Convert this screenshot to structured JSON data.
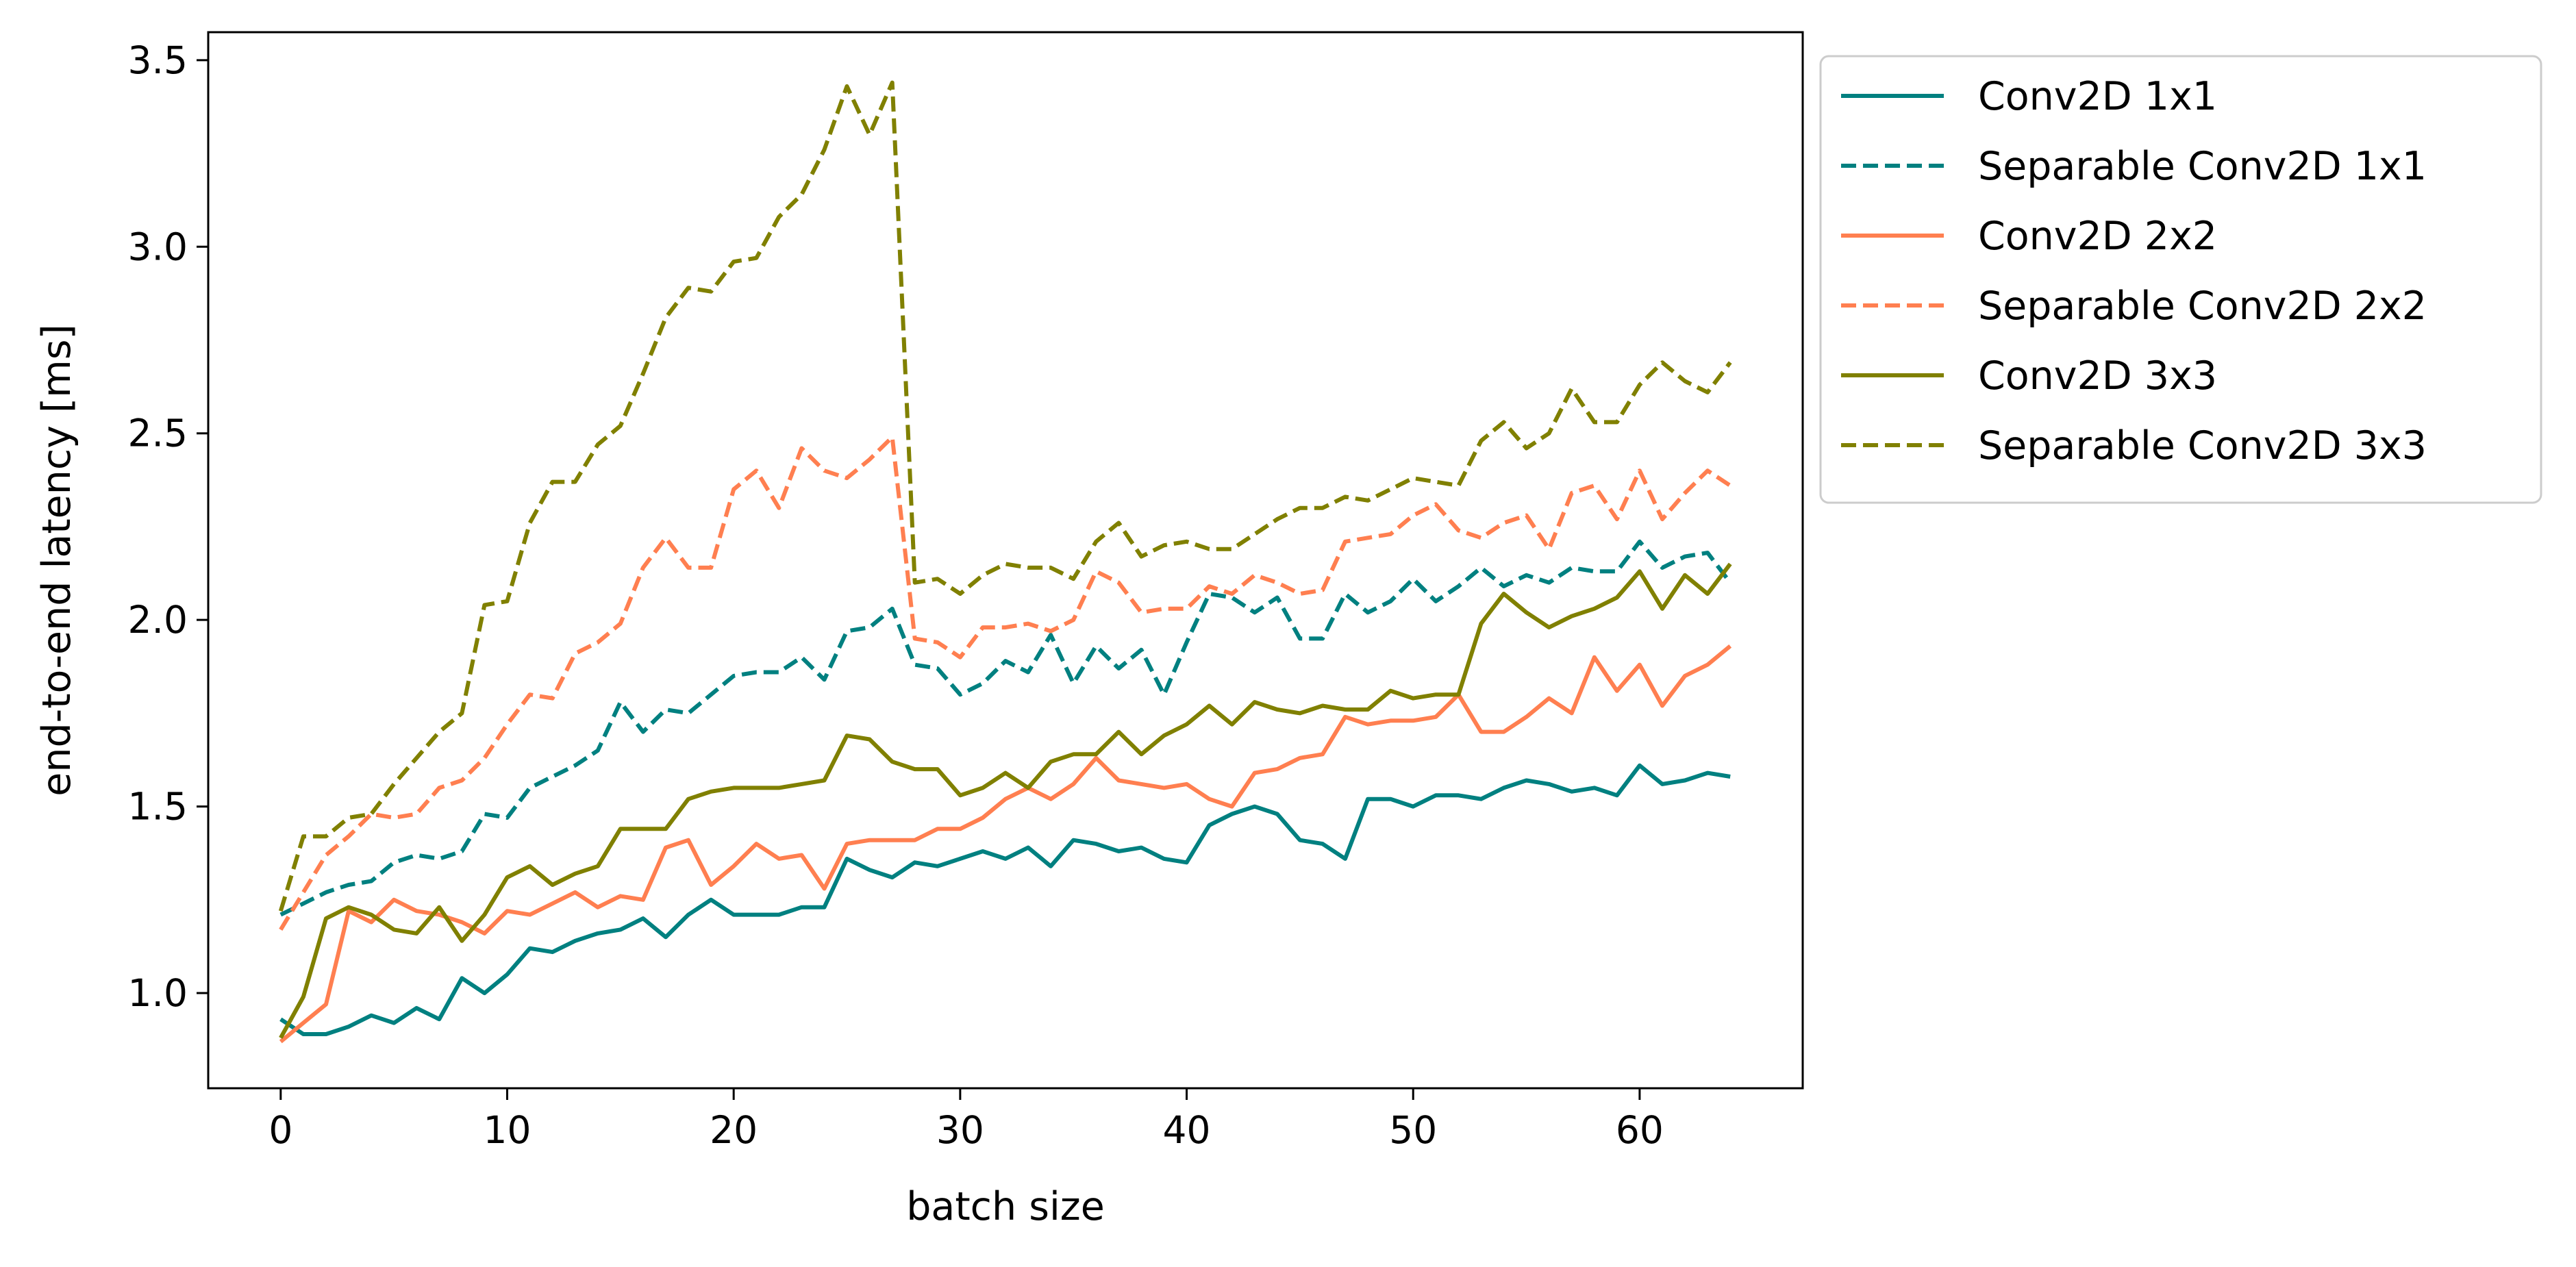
{
  "chart_data": {
    "type": "line",
    "xlabel": "batch size",
    "ylabel": "end-to-end latency [ms]",
    "xlim": [
      -3.2,
      67.2
    ],
    "ylim": [
      0.745,
      3.575
    ],
    "xticks": [
      0,
      10,
      20,
      30,
      40,
      50,
      60
    ],
    "yticks": [
      1.0,
      1.5,
      2.0,
      2.5,
      3.0,
      3.5
    ],
    "xtick_labels": [
      "0",
      "10",
      "20",
      "30",
      "40",
      "50",
      "60"
    ],
    "ytick_labels": [
      "1.0",
      "1.5",
      "2.0",
      "2.5",
      "3.0",
      "3.5"
    ],
    "grid": false,
    "legend_position": "outside-right-top",
    "x": [
      0,
      1,
      2,
      3,
      4,
      5,
      6,
      7,
      8,
      9,
      10,
      11,
      12,
      13,
      14,
      15,
      16,
      17,
      18,
      19,
      20,
      21,
      22,
      23,
      24,
      25,
      26,
      27,
      28,
      29,
      30,
      31,
      32,
      33,
      34,
      35,
      36,
      37,
      38,
      39,
      40,
      41,
      42,
      43,
      44,
      45,
      46,
      47,
      48,
      49,
      50,
      51,
      52,
      53,
      54,
      55,
      56,
      57,
      58,
      59,
      60,
      61,
      62,
      63,
      64
    ],
    "series": [
      {
        "name": "Conv2D 1x1",
        "color": "#008080",
        "style": "solid",
        "values": [
          0.93,
          0.89,
          0.89,
          0.91,
          0.94,
          0.92,
          0.96,
          0.93,
          1.04,
          1.0,
          1.05,
          1.12,
          1.11,
          1.14,
          1.16,
          1.17,
          1.2,
          1.15,
          1.21,
          1.25,
          1.21,
          1.21,
          1.21,
          1.23,
          1.23,
          1.36,
          1.33,
          1.31,
          1.35,
          1.34,
          1.36,
          1.38,
          1.36,
          1.39,
          1.34,
          1.41,
          1.4,
          1.38,
          1.39,
          1.36,
          1.35,
          1.45,
          1.48,
          1.5,
          1.48,
          1.41,
          1.4,
          1.36,
          1.52,
          1.52,
          1.5,
          1.53,
          1.53,
          1.52,
          1.55,
          1.57,
          1.56,
          1.54,
          1.55,
          1.53,
          1.61,
          1.56,
          1.57,
          1.59,
          1.58
        ]
      },
      {
        "name": "Separable Conv2D 1x1",
        "color": "#008080",
        "style": "dashed",
        "values": [
          1.21,
          1.24,
          1.27,
          1.29,
          1.3,
          1.35,
          1.37,
          1.36,
          1.38,
          1.48,
          1.47,
          1.55,
          1.58,
          1.61,
          1.65,
          1.78,
          1.7,
          1.76,
          1.75,
          1.8,
          1.85,
          1.86,
          1.86,
          1.9,
          1.84,
          1.97,
          1.98,
          2.03,
          1.88,
          1.87,
          1.8,
          1.83,
          1.89,
          1.86,
          1.96,
          1.83,
          1.93,
          1.87,
          1.92,
          1.8,
          1.94,
          2.07,
          2.06,
          2.02,
          2.06,
          1.95,
          1.95,
          2.07,
          2.02,
          2.05,
          2.11,
          2.05,
          2.09,
          2.14,
          2.09,
          2.12,
          2.1,
          2.14,
          2.13,
          2.13,
          2.21,
          2.14,
          2.17,
          2.18,
          2.1
        ]
      },
      {
        "name": "Conv2D 2x2",
        "color": "#ff7f50",
        "style": "solid",
        "values": [
          0.87,
          0.92,
          0.97,
          1.22,
          1.19,
          1.25,
          1.22,
          1.21,
          1.19,
          1.16,
          1.22,
          1.21,
          1.24,
          1.27,
          1.23,
          1.26,
          1.25,
          1.39,
          1.41,
          1.29,
          1.34,
          1.4,
          1.36,
          1.37,
          1.28,
          1.4,
          1.41,
          1.41,
          1.41,
          1.44,
          1.44,
          1.47,
          1.52,
          1.55,
          1.52,
          1.56,
          1.63,
          1.57,
          1.56,
          1.55,
          1.56,
          1.52,
          1.5,
          1.59,
          1.6,
          1.63,
          1.64,
          1.74,
          1.72,
          1.73,
          1.73,
          1.74,
          1.8,
          1.7,
          1.7,
          1.74,
          1.79,
          1.75,
          1.9,
          1.81,
          1.88,
          1.77,
          1.85,
          1.88,
          1.93
        ]
      },
      {
        "name": "Separable Conv2D 2x2",
        "color": "#ff7f50",
        "style": "dashed",
        "values": [
          1.17,
          1.27,
          1.37,
          1.42,
          1.48,
          1.47,
          1.48,
          1.55,
          1.57,
          1.63,
          1.72,
          1.8,
          1.79,
          1.91,
          1.94,
          1.99,
          2.14,
          2.22,
          2.14,
          2.14,
          2.35,
          2.4,
          2.3,
          2.46,
          2.4,
          2.38,
          2.43,
          2.49,
          1.95,
          1.94,
          1.9,
          1.98,
          1.98,
          1.99,
          1.97,
          2.0,
          2.13,
          2.1,
          2.02,
          2.03,
          2.03,
          2.09,
          2.07,
          2.12,
          2.1,
          2.07,
          2.08,
          2.21,
          2.22,
          2.23,
          2.28,
          2.31,
          2.24,
          2.22,
          2.26,
          2.28,
          2.19,
          2.34,
          2.36,
          2.27,
          2.4,
          2.27,
          2.34,
          2.4,
          2.36
        ]
      },
      {
        "name": "Conv2D 3x3",
        "color": "#808000",
        "style": "solid",
        "values": [
          0.88,
          0.99,
          1.2,
          1.23,
          1.21,
          1.17,
          1.16,
          1.23,
          1.14,
          1.21,
          1.31,
          1.34,
          1.29,
          1.32,
          1.34,
          1.44,
          1.44,
          1.44,
          1.52,
          1.54,
          1.55,
          1.55,
          1.55,
          1.56,
          1.57,
          1.69,
          1.68,
          1.62,
          1.6,
          1.6,
          1.53,
          1.55,
          1.59,
          1.55,
          1.62,
          1.64,
          1.64,
          1.7,
          1.64,
          1.69,
          1.72,
          1.77,
          1.72,
          1.78,
          1.76,
          1.75,
          1.77,
          1.76,
          1.76,
          1.81,
          1.79,
          1.8,
          1.8,
          1.99,
          2.07,
          2.02,
          1.98,
          2.01,
          2.03,
          2.06,
          2.13,
          2.03,
          2.12,
          2.07,
          2.15
        ]
      },
      {
        "name": "Separable Conv2D 3x3",
        "color": "#808000",
        "style": "dashed",
        "values": [
          1.22,
          1.42,
          1.42,
          1.47,
          1.48,
          1.56,
          1.63,
          1.7,
          1.75,
          2.04,
          2.05,
          2.26,
          2.37,
          2.37,
          2.47,
          2.52,
          2.66,
          2.81,
          2.89,
          2.88,
          2.96,
          2.97,
          3.08,
          3.14,
          3.26,
          3.43,
          3.3,
          3.44,
          2.1,
          2.11,
          2.07,
          2.12,
          2.15,
          2.14,
          2.14,
          2.11,
          2.21,
          2.26,
          2.17,
          2.2,
          2.21,
          2.19,
          2.19,
          2.23,
          2.27,
          2.3,
          2.3,
          2.33,
          2.32,
          2.35,
          2.38,
          2.37,
          2.36,
          2.48,
          2.53,
          2.46,
          2.5,
          2.62,
          2.53,
          2.53,
          2.63,
          2.69,
          2.64,
          2.61,
          2.69
        ]
      }
    ]
  }
}
